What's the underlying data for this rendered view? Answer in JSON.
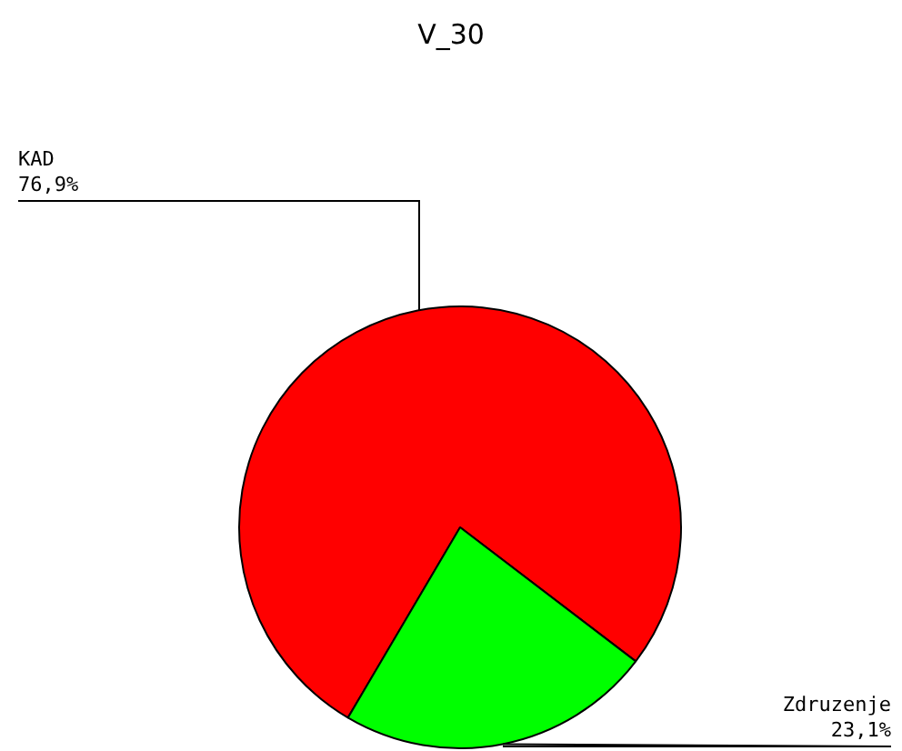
{
  "chart_data": {
    "type": "pie",
    "title": "V_30",
    "categories": [
      "KAD",
      "Zdruzenje"
    ],
    "values": [
      76.9,
      23.1
    ],
    "colors": [
      "#ff0000",
      "#00ff00"
    ],
    "value_labels": [
      "76,9%",
      "23,1%"
    ],
    "legend": false
  }
}
